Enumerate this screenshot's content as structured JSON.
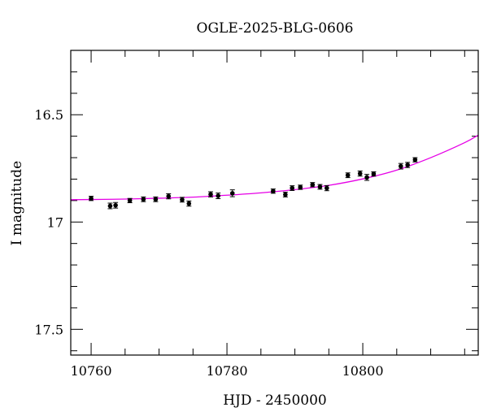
{
  "chart_data": {
    "type": "scatter",
    "title": "OGLE-2025-BLG-0606",
    "xlabel": "HJD - 2450000",
    "ylabel": "I magnitude",
    "xlim": [
      10757,
      10817
    ],
    "ylim": [
      17.62,
      16.2
    ],
    "y_inverted": true,
    "grid": false,
    "x_major_ticks": [
      10760,
      10780,
      10800
    ],
    "x_tick_labels": [
      "10760",
      "10780",
      "10800"
    ],
    "x_minor_step": 5,
    "y_major_ticks": [
      16.5,
      17,
      17.5
    ],
    "y_tick_labels": [
      "16.5",
      "17",
      "17.5"
    ],
    "y_minor_step": 0.1,
    "colors": {
      "model": "#e600e6",
      "points": "#000000",
      "frame": "#000000"
    },
    "series": [
      {
        "type": "scatter",
        "points": [
          {
            "x": 10760.0,
            "y": 16.89,
            "err": 0.01
          },
          {
            "x": 10762.8,
            "y": 16.925,
            "err": 0.013
          },
          {
            "x": 10763.6,
            "y": 16.922,
            "err": 0.013
          },
          {
            "x": 10765.7,
            "y": 16.9,
            "err": 0.01
          },
          {
            "x": 10767.7,
            "y": 16.894,
            "err": 0.011
          },
          {
            "x": 10769.5,
            "y": 16.894,
            "err": 0.011
          },
          {
            "x": 10771.4,
            "y": 16.88,
            "err": 0.012
          },
          {
            "x": 10773.4,
            "y": 16.896,
            "err": 0.011
          },
          {
            "x": 10774.4,
            "y": 16.914,
            "err": 0.012
          },
          {
            "x": 10777.6,
            "y": 16.871,
            "err": 0.012
          },
          {
            "x": 10778.7,
            "y": 16.878,
            "err": 0.013
          },
          {
            "x": 10780.8,
            "y": 16.866,
            "err": 0.016
          },
          {
            "x": 10786.8,
            "y": 16.856,
            "err": 0.01
          },
          {
            "x": 10788.6,
            "y": 16.872,
            "err": 0.011
          },
          {
            "x": 10789.6,
            "y": 16.842,
            "err": 0.011
          },
          {
            "x": 10790.8,
            "y": 16.838,
            "err": 0.01
          },
          {
            "x": 10792.6,
            "y": 16.826,
            "err": 0.01
          },
          {
            "x": 10793.7,
            "y": 16.836,
            "err": 0.011
          },
          {
            "x": 10794.7,
            "y": 16.842,
            "err": 0.012
          },
          {
            "x": 10797.8,
            "y": 16.782,
            "err": 0.011
          },
          {
            "x": 10799.6,
            "y": 16.774,
            "err": 0.012
          },
          {
            "x": 10800.6,
            "y": 16.792,
            "err": 0.014
          },
          {
            "x": 10801.6,
            "y": 16.776,
            "err": 0.01
          },
          {
            "x": 10805.6,
            "y": 16.74,
            "err": 0.013
          },
          {
            "x": 10806.6,
            "y": 16.734,
            "err": 0.012
          },
          {
            "x": 10807.7,
            "y": 16.71,
            "err": 0.01
          }
        ]
      },
      {
        "type": "line",
        "color": "#e600e6",
        "points": [
          {
            "x": 10757,
            "y": 16.896
          },
          {
            "x": 10760,
            "y": 16.895
          },
          {
            "x": 10765,
            "y": 16.893
          },
          {
            "x": 10770,
            "y": 16.889
          },
          {
            "x": 10775,
            "y": 16.884
          },
          {
            "x": 10780,
            "y": 16.875
          },
          {
            "x": 10785,
            "y": 16.864
          },
          {
            "x": 10790,
            "y": 16.849
          },
          {
            "x": 10795,
            "y": 16.829
          },
          {
            "x": 10800,
            "y": 16.799
          },
          {
            "x": 10805,
            "y": 16.758
          },
          {
            "x": 10810,
            "y": 16.7
          },
          {
            "x": 10815,
            "y": 16.63
          },
          {
            "x": 10817,
            "y": 16.595
          }
        ]
      }
    ]
  }
}
